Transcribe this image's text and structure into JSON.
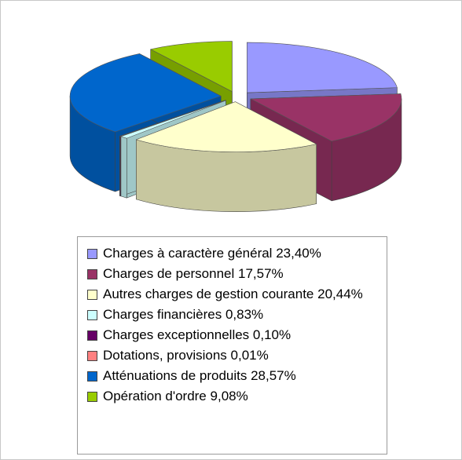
{
  "chart_data": {
    "type": "pie",
    "categories": [
      "Charges à caractère général",
      "Charges de personnel",
      "Autres charges de gestion courante",
      "Charges financières",
      "Charges exceptionnelles",
      "Dotations, provisions",
      "Atténuations de produits",
      "Opération d'ordre"
    ],
    "values": [
      23.4,
      17.57,
      20.44,
      0.83,
      0.1,
      0.01,
      28.57,
      9.08
    ],
    "value_labels": [
      "23,40%",
      "17,57%",
      "20,44%",
      "0,83%",
      "0,10%",
      "0,01%",
      "28,57%",
      "9,08%"
    ],
    "colors": [
      "#9999ff",
      "#993366",
      "#ffffcc",
      "#ccffff",
      "#660066",
      "#ff8080",
      "#0066cc",
      "#99cc00"
    ]
  }
}
